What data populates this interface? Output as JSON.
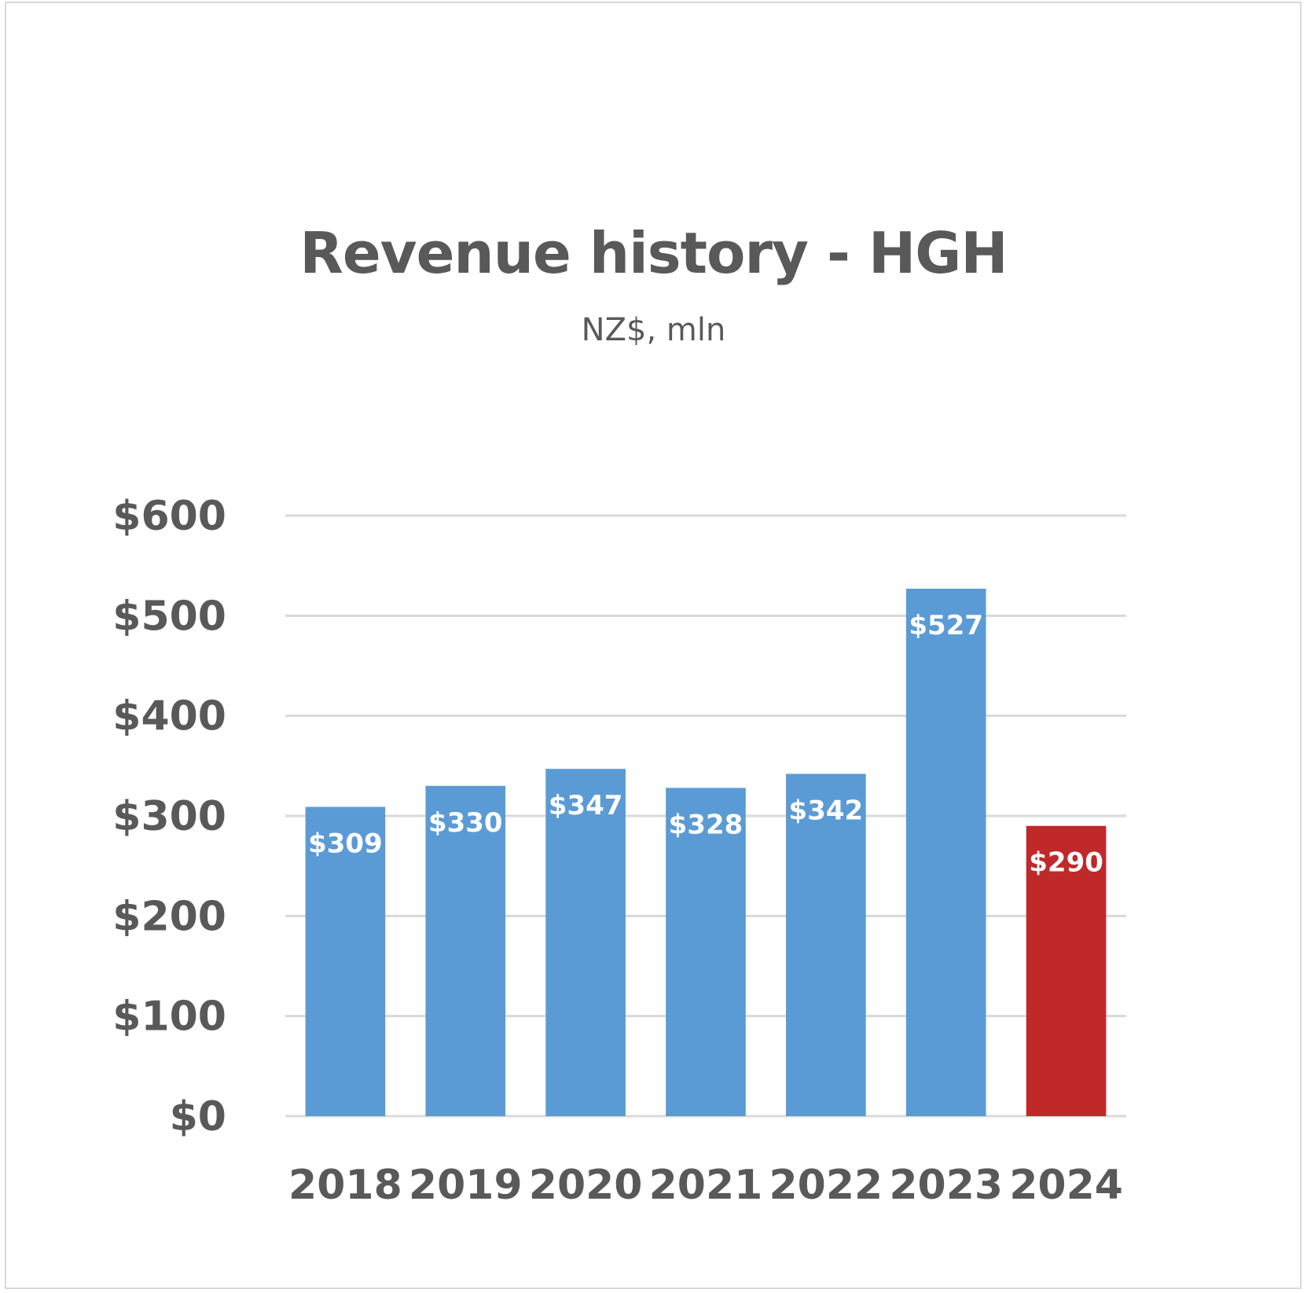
{
  "chart_data": {
    "type": "bar",
    "title": "Revenue history - HGH",
    "subtitle": "NZ$, mln",
    "categories": [
      "2018",
      "2019",
      "2020",
      "2021",
      "2022",
      "2023",
      "2024"
    ],
    "values": [
      309,
      330,
      347,
      328,
      342,
      527,
      290
    ],
    "data_labels": [
      "$309",
      "$330",
      "$347",
      "$328",
      "$342",
      "$527",
      "$290"
    ],
    "ylim": [
      0,
      600
    ],
    "yticks": [
      0,
      100,
      200,
      300,
      400,
      500,
      600
    ],
    "ytick_labels": [
      "$0",
      "$100",
      "$200",
      "$300",
      "$400",
      "$500",
      "$600"
    ],
    "grid": true,
    "legend": "none",
    "colors": {
      "bar": "#5b9bd5",
      "highlight_bar": "#c0292a",
      "gridline": "#d9d9d9",
      "text": "#595959",
      "data_label": "#ffffff"
    },
    "highlight_index": 6
  }
}
